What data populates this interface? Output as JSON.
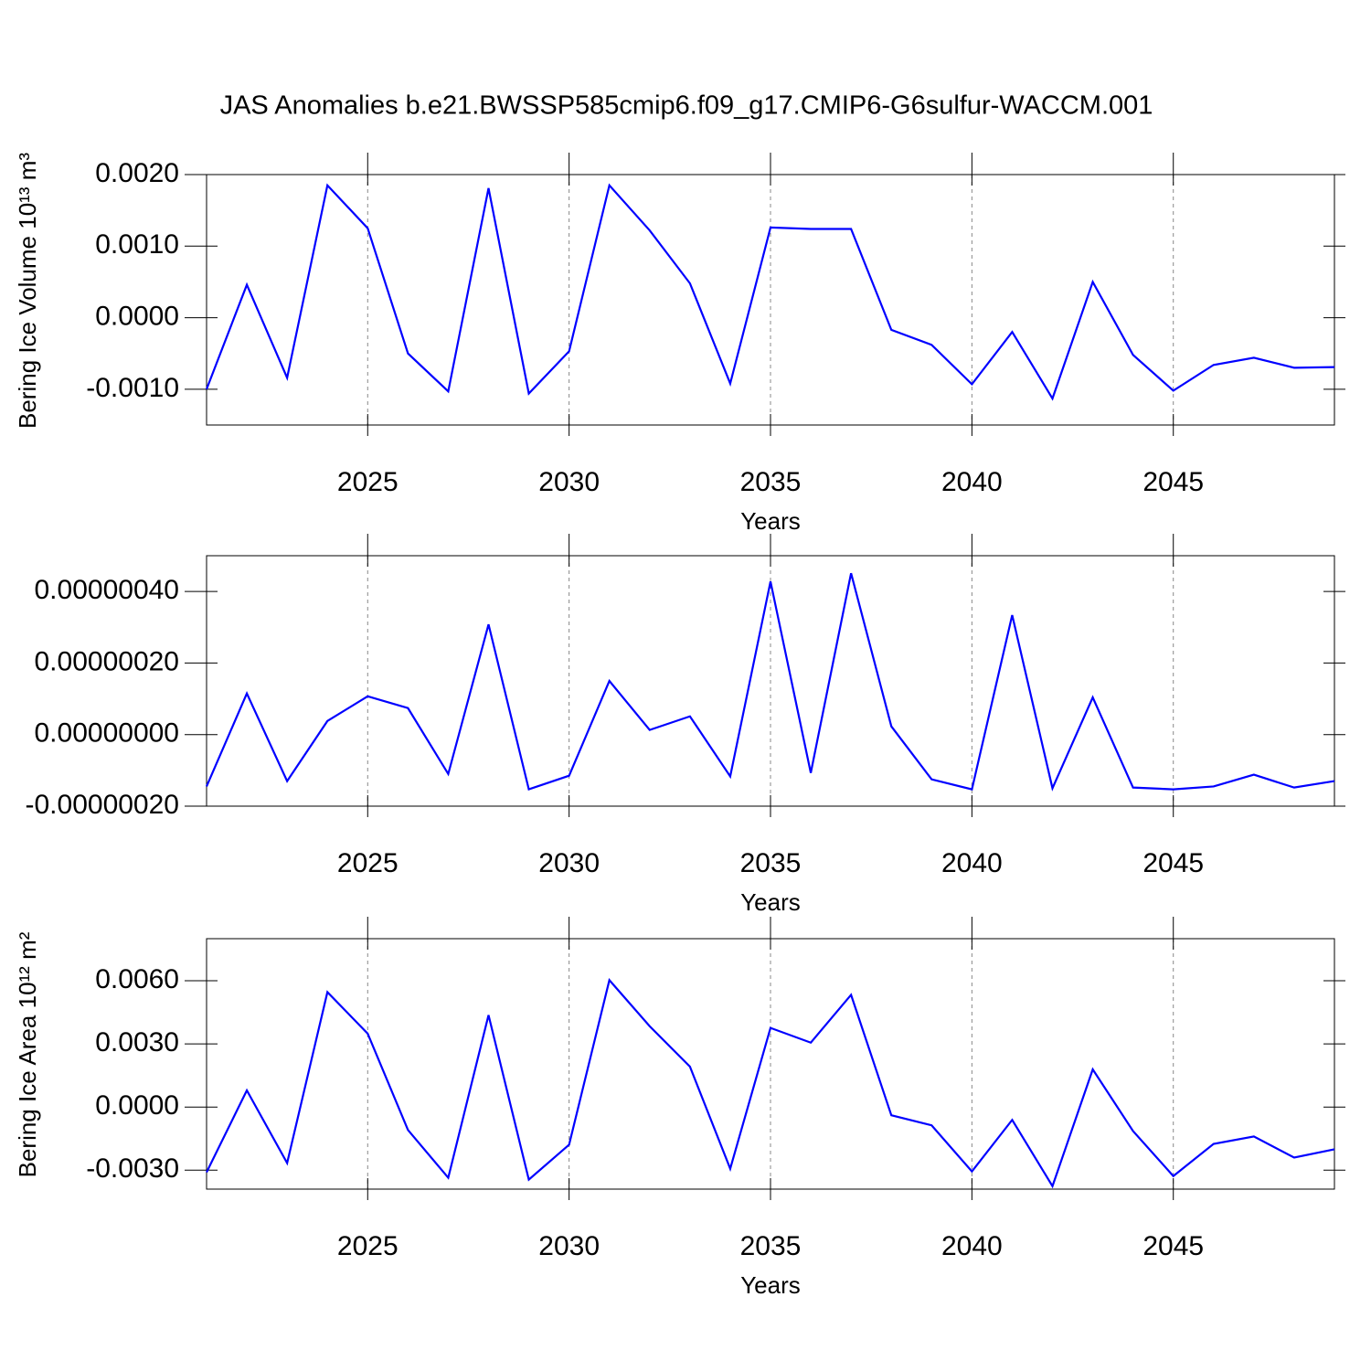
{
  "chart_data": [
    {
      "type": "line",
      "title": "JAS Anomalies b.e21.BWSSP585cmip6.f09_g17.CMIP6-G6sulfur-WACCM.001",
      "y_label": "Bering Ice Volume 10¹³ m³",
      "x_label": "Years",
      "grid": true,
      "x": [
        2021,
        2022,
        2023,
        2024,
        2025,
        2026,
        2027,
        2028,
        2029,
        2030,
        2031,
        2032,
        2033,
        2034,
        2035,
        2036,
        2037,
        2038,
        2039,
        2040,
        2041,
        2042,
        2043,
        2044,
        2045,
        2046,
        2047,
        2048,
        2049
      ],
      "xlim": [
        2021,
        2049
      ],
      "xticks": [
        2025,
        2030,
        2035,
        2040,
        2045
      ],
      "ylim": [
        -0.0015,
        0.002
      ],
      "yticks": [
        {
          "value": -0.001,
          "label": "-0.0010"
        },
        {
          "value": 0,
          "label": "0.0000"
        },
        {
          "value": 0.001,
          "label": "0.0010"
        },
        {
          "value": 0.002,
          "label": "0.0020"
        }
      ],
      "series": [
        {
          "color": "#0000ff",
          "values": [
            -0.001,
            0.00046,
            -0.00084,
            0.00185,
            0.00125,
            -0.0005,
            -0.00103,
            0.00181,
            -0.00106,
            -0.00047,
            0.00185,
            0.00122,
            0.00048,
            -0.00092,
            0.00126,
            0.00124,
            0.00124,
            -0.00017,
            -0.00038,
            -0.00093,
            -0.0002,
            -0.00113,
            0.0005,
            -0.00052,
            -0.00102,
            -0.00066,
            -0.00056,
            -0.0007,
            -0.00069
          ]
        }
      ]
    },
    {
      "type": "line",
      "x_label": "Years",
      "grid": true,
      "x": [
        2021,
        2022,
        2023,
        2024,
        2025,
        2026,
        2027,
        2028,
        2029,
        2030,
        2031,
        2032,
        2033,
        2034,
        2035,
        2036,
        2037,
        2038,
        2039,
        2040,
        2041,
        2042,
        2043,
        2044,
        2045,
        2046,
        2047,
        2048,
        2049
      ],
      "xlim": [
        2021,
        2049
      ],
      "xticks": [
        2025,
        2030,
        2035,
        2040,
        2045
      ],
      "ylim": [
        -2e-07,
        5e-07
      ],
      "yticks": [
        {
          "value": -2e-07,
          "label": "-0.00000020"
        },
        {
          "value": 0,
          "label": "0.00000000"
        },
        {
          "value": 2e-07,
          "label": "0.00000020"
        },
        {
          "value": 4e-07,
          "label": "0.00000040"
        }
      ],
      "series": [
        {
          "color": "#0000ff",
          "values": [
            -1.45e-07,
            1.15e-07,
            -1.3e-07,
            3.8e-08,
            1.07e-07,
            7.4e-08,
            -1.1e-07,
            3.08e-07,
            -1.53e-07,
            -1.15e-07,
            1.5e-07,
            1.3e-08,
            5.1e-08,
            -1.17e-07,
            4.28e-07,
            -1.07e-07,
            4.51e-07,
            2.3e-08,
            -1.25e-07,
            -1.53e-07,
            3.34e-07,
            -1.5e-07,
            1.04e-07,
            -1.48e-07,
            -1.53e-07,
            -1.45e-07,
            -1.12e-07,
            -1.48e-07,
            -1.3e-07
          ]
        }
      ]
    },
    {
      "type": "line",
      "y_label": "Bering Ice Area 10¹² m²",
      "x_label": "Years",
      "grid": true,
      "x": [
        2021,
        2022,
        2023,
        2024,
        2025,
        2026,
        2027,
        2028,
        2029,
        2030,
        2031,
        2032,
        2033,
        2034,
        2035,
        2036,
        2037,
        2038,
        2039,
        2040,
        2041,
        2042,
        2043,
        2044,
        2045,
        2046,
        2047,
        2048,
        2049
      ],
      "xlim": [
        2021,
        2049
      ],
      "xticks": [
        2025,
        2030,
        2035,
        2040,
        2045
      ],
      "ylim": [
        -0.0039,
        0.008
      ],
      "yticks": [
        {
          "value": -0.003,
          "label": "-0.0030"
        },
        {
          "value": 0,
          "label": "0.0000"
        },
        {
          "value": 0.003,
          "label": "0.0030"
        },
        {
          "value": 0.006,
          "label": "0.0060"
        }
      ],
      "series": [
        {
          "color": "#0000ff",
          "values": [
            -0.0031,
            0.00079,
            -0.00266,
            0.00546,
            0.00349,
            -0.00109,
            -0.00336,
            0.00437,
            -0.00345,
            -0.00179,
            0.00603,
            0.00384,
            0.00192,
            -0.00293,
            0.00376,
            0.00306,
            0.00533,
            -0.00039,
            -0.00087,
            -0.00306,
            -0.00061,
            -0.00376,
            0.00179,
            -0.00114,
            -0.00328,
            -0.00175,
            -0.0014,
            -0.0024,
            -0.00201
          ]
        }
      ]
    }
  ]
}
